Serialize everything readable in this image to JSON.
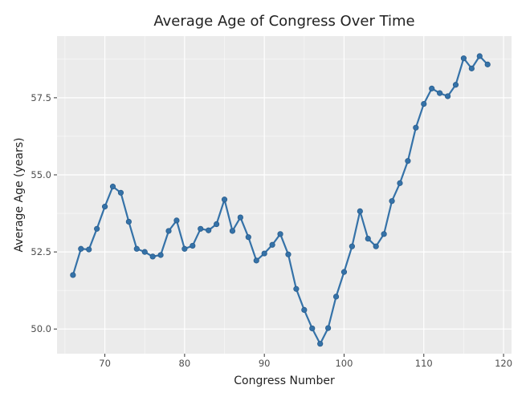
{
  "chart_data": {
    "type": "line",
    "title": "Average Age of Congress Over Time",
    "xlabel": "Congress Number",
    "ylabel": "Average Age (years)",
    "xlim": [
      64,
      121
    ],
    "ylim": [
      49.2,
      59.5
    ],
    "x_ticks": [
      70,
      80,
      90,
      100,
      110,
      120
    ],
    "y_ticks": [
      50.0,
      52.5,
      55.0,
      57.5
    ],
    "x_tick_labels": [
      "70",
      "80",
      "90",
      "100",
      "110",
      "120"
    ],
    "y_tick_labels": [
      "50.0",
      "52.5",
      "55.0",
      "57.5"
    ],
    "grid": true,
    "legend": "none",
    "colors": {
      "line": "#3572a8",
      "marker": "#3572a8",
      "panel": "#ebebeb",
      "grid": "#ffffff"
    },
    "series": [
      {
        "x": [
          66,
          67,
          68,
          69,
          70,
          71,
          72,
          73,
          74,
          75,
          76,
          77,
          78,
          79,
          80,
          81,
          82,
          83,
          84,
          85,
          86,
          87,
          88,
          89,
          90,
          91,
          92,
          93,
          94,
          95,
          96,
          97,
          98,
          99,
          100,
          101,
          102,
          103,
          104,
          105,
          106,
          107,
          108,
          109,
          110,
          111,
          112,
          113,
          114,
          115,
          116,
          117,
          118
        ],
        "values": [
          51.75,
          52.6,
          52.58,
          53.25,
          53.97,
          54.62,
          54.42,
          53.48,
          52.6,
          52.5,
          52.35,
          52.4,
          53.18,
          53.52,
          52.6,
          52.7,
          53.25,
          53.2,
          53.4,
          54.2,
          53.18,
          53.62,
          52.98,
          52.22,
          52.45,
          52.73,
          53.08,
          52.42,
          51.3,
          50.62,
          50.02,
          49.52,
          50.03,
          51.05,
          51.85,
          52.68,
          53.82,
          52.93,
          52.68,
          53.08,
          54.15,
          54.73,
          55.45,
          56.53,
          57.3,
          57.8,
          57.65,
          57.55,
          57.92,
          58.78,
          58.45,
          58.85,
          58.58
        ]
      }
    ]
  }
}
